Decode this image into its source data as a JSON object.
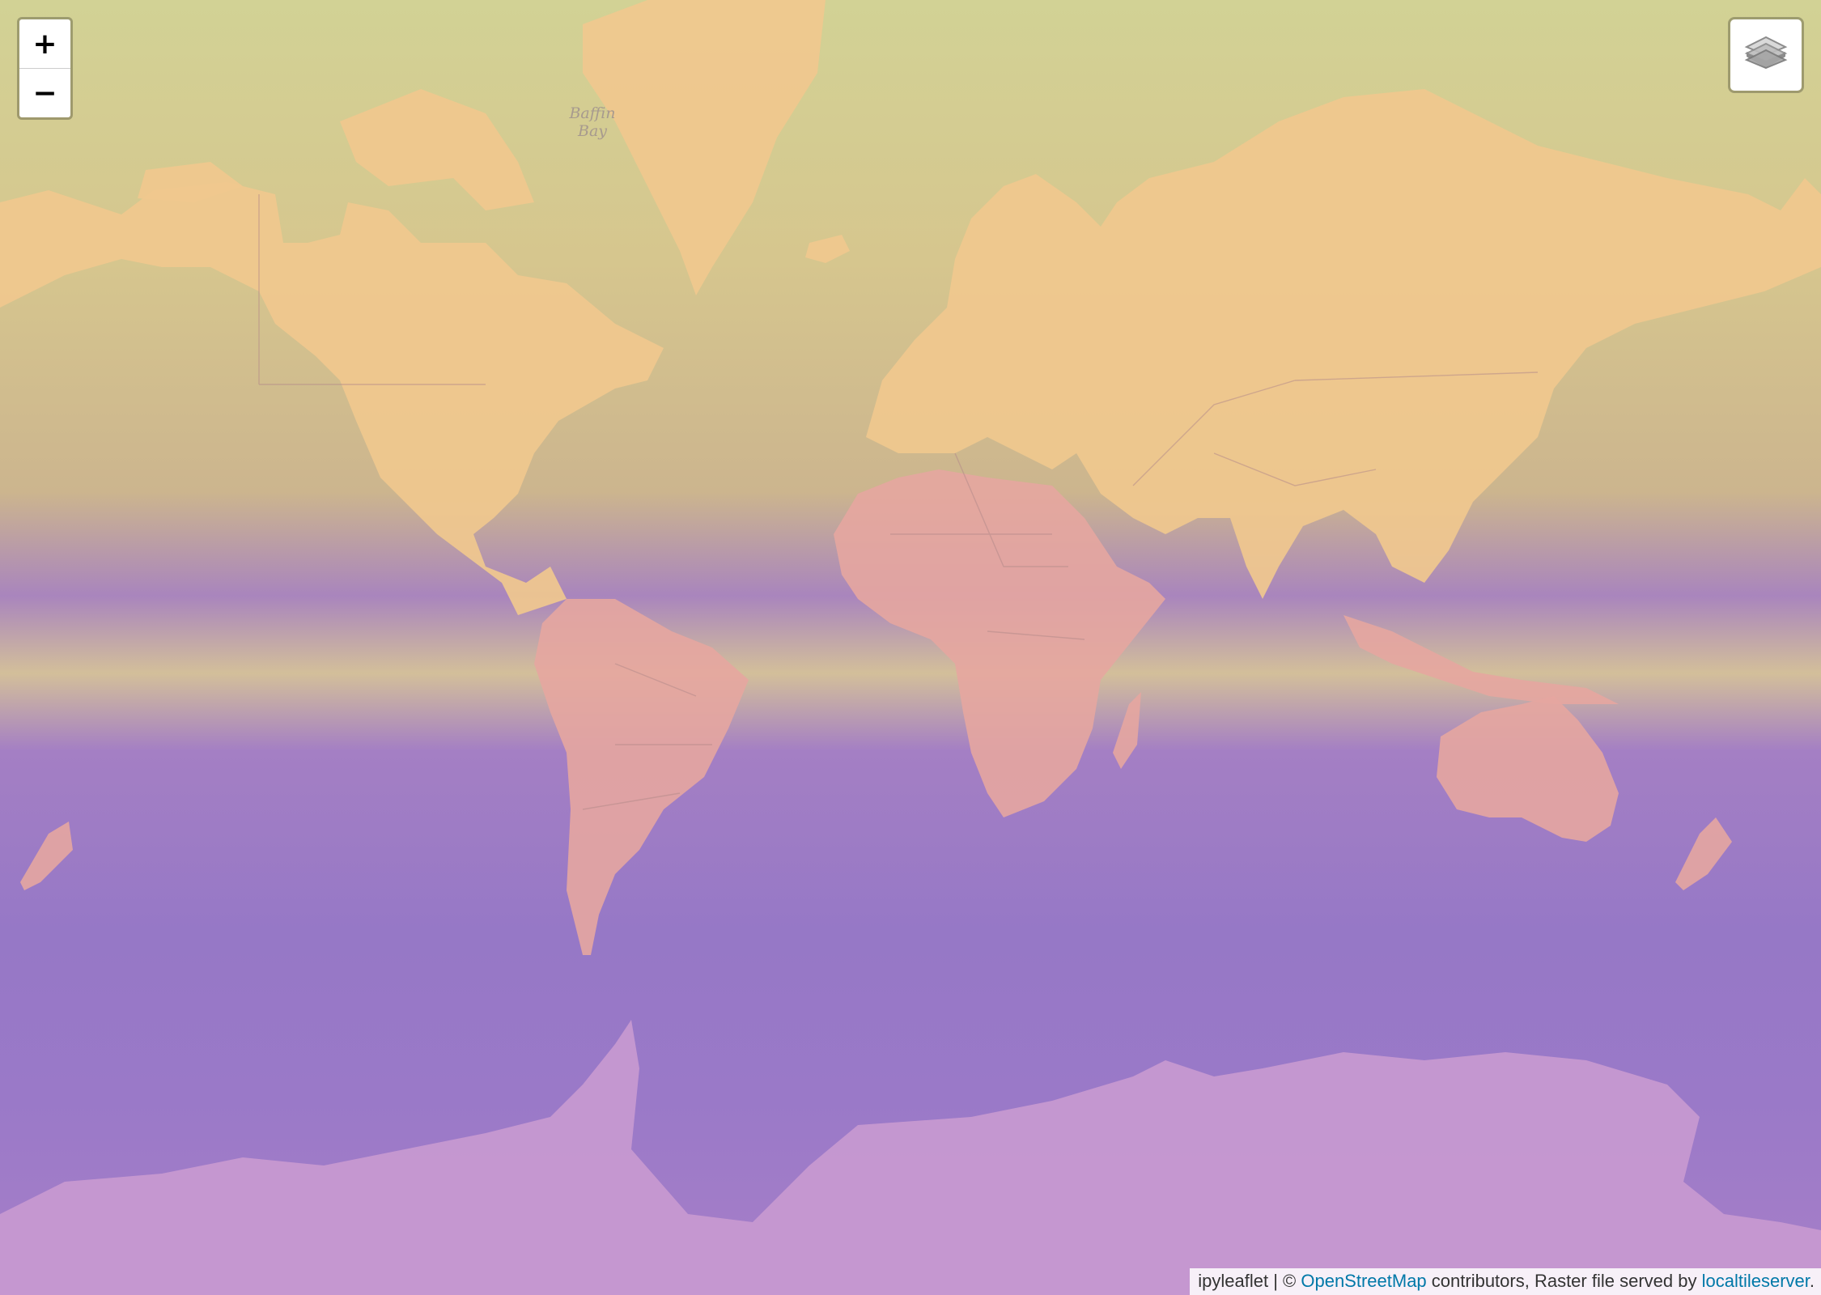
{
  "map": {
    "zoom_in_label": "+",
    "zoom_out_label": "−",
    "layers_icon": "layers-icon",
    "sea_labels": [
      "Baffin",
      "Bay"
    ],
    "colors": {
      "land": "#f0c88e",
      "tropics": "#a985bd",
      "southern_ocean": "#9678c6",
      "link": "#0078a8"
    }
  },
  "attribution": {
    "prefix": "ipyleaflet",
    "separator": " | © ",
    "osm_link": "OpenStreetMap",
    "middle_text": " contributors, Raster file served by ",
    "server_link": "localtileserver",
    "suffix": "."
  }
}
